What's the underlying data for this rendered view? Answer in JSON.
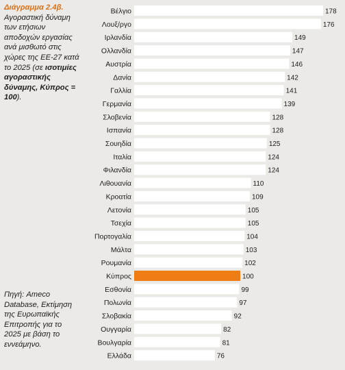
{
  "caption": {
    "title": "Διάγραμμα 2.4β.",
    "text_before": "Αγοραστική δύναμη των ετήσιων αποδοχών εργασίας ανά μισθωτό στις χώρες της ΕΕ-27 κατά το 2025 (σε ",
    "text_bold": "ισοτιμίες αγοραστικής δύναμης, Κύπρος = 100",
    "text_after": ")."
  },
  "source": "Πηγή: Ameco Database, Εκτίμηση της Ευρωπαϊκής Επιτροπής για το 2025 με βάση το εννεάμηνο.",
  "colors": {
    "bar": "#ffffff",
    "highlight": "#f07d14",
    "text": "#1c1c1c",
    "background": "#eceae6"
  },
  "chart_data": {
    "type": "bar",
    "orientation": "horizontal",
    "highlight_category": "Κύπρος",
    "categories": [
      "Βέλγιο",
      "Λουξ/ργο",
      "Ιρλανδία",
      "Ολλανδία",
      "Αυστρία",
      "Δανία",
      "Γαλλία",
      "Γερμανία",
      "Σλοβενία",
      "Ισπανία",
      "Σουηδία",
      "Ιταλία",
      "Φιλανδία",
      "Λιθουανία",
      "Κροατία",
      "Λετονία",
      "Τσεχία",
      "Πορτογαλία",
      "Μάλτα",
      "Ρουμανία",
      "Κύπρος",
      "Εσθονία",
      "Πολωνία",
      "Σλοβακία",
      "Ουγγαρία",
      "Βουλγαρία",
      "Ελλάδα"
    ],
    "values": [
      178,
      176,
      149,
      147,
      146,
      142,
      141,
      139,
      128,
      128,
      125,
      124,
      124,
      110,
      109,
      105,
      105,
      104,
      103,
      102,
      100,
      99,
      97,
      92,
      82,
      81,
      76
    ],
    "xlim": [
      0,
      180
    ]
  }
}
